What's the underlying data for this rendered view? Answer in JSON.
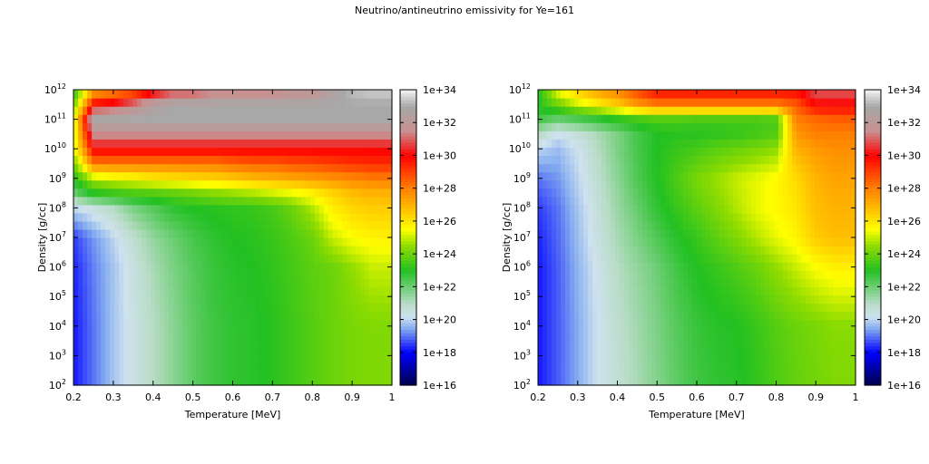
{
  "title": "Neutrino/antineutrino emissivity for Ye=161",
  "colormap": [
    {
      "value": 16,
      "color": "#000048"
    },
    {
      "value": 18,
      "color": "#0000ff"
    },
    {
      "value": 19.5,
      "color": "#86aef0"
    },
    {
      "value": 20.2,
      "color": "#cfe2ee"
    },
    {
      "value": 21,
      "color": "#b8dcc6"
    },
    {
      "value": 23,
      "color": "#22c022"
    },
    {
      "value": 24.5,
      "color": "#8fdc00"
    },
    {
      "value": 25.5,
      "color": "#ffff00"
    },
    {
      "value": 28,
      "color": "#ff8000"
    },
    {
      "value": 30,
      "color": "#ff0000"
    },
    {
      "value": 31.5,
      "color": "#c89090"
    },
    {
      "value": 33,
      "color": "#a8a8a8"
    },
    {
      "value": 34,
      "color": "#f4f4f4"
    }
  ],
  "chart_data": [
    {
      "type": "heatmap",
      "name": "neutrino",
      "xlabel": "Temperature [MeV]",
      "ylabel": "Density [g/cc]",
      "xlim": [
        0.2,
        1.0
      ],
      "ylim_log10": [
        2,
        12
      ],
      "xticks": [
        "0.2",
        "0.3",
        "0.4",
        "0.5",
        "0.6",
        "0.7",
        "0.8",
        "0.9",
        "1"
      ],
      "yticks": [
        {
          "base": "10",
          "exp": "2"
        },
        {
          "base": "10",
          "exp": "3"
        },
        {
          "base": "10",
          "exp": "4"
        },
        {
          "base": "10",
          "exp": "5"
        },
        {
          "base": "10",
          "exp": "6"
        },
        {
          "base": "10",
          "exp": "7"
        },
        {
          "base": "10",
          "exp": "8"
        },
        {
          "base": "10",
          "exp": "9"
        },
        {
          "base": "10",
          "exp": "10"
        },
        {
          "base": "10",
          "exp": "11"
        },
        {
          "base": "10",
          "exp": "12"
        }
      ],
      "colorbar_ticks": [
        "1e+16",
        "1e+18",
        "1e+20",
        "1e+22",
        "1e+24",
        "1e+26",
        "1e+28",
        "1e+30",
        "1e+32",
        "1e+34"
      ],
      "zlim_log10": [
        16,
        34
      ],
      "temperature": [
        0.2,
        0.25,
        0.3,
        0.35,
        0.4,
        0.45,
        0.5,
        0.55,
        0.6,
        0.65,
        0.7,
        0.75,
        0.8,
        0.85,
        0.9,
        0.95,
        1.0
      ],
      "log10_density_rows": [
        {
          "log10_rho": 12.0,
          "log10_emissivity": [
            23,
            27,
            27.5,
            28,
            29.5,
            30.5,
            30.5,
            31,
            31,
            31,
            31,
            31.5,
            31.5,
            32.5,
            33.3,
            33.5,
            33.5
          ]
        },
        {
          "log10_rho": 11.5,
          "log10_emissivity": [
            24,
            30,
            30.5,
            31.5,
            32.5,
            33,
            33,
            33,
            33,
            33,
            33,
            33,
            33,
            33,
            33,
            33,
            33
          ]
        },
        {
          "log10_rho": 11.0,
          "log10_emissivity": [
            25,
            33,
            33,
            33,
            33,
            33,
            33,
            33,
            33,
            33,
            33,
            33,
            33,
            33,
            33,
            33,
            33
          ]
        },
        {
          "log10_rho": 10.5,
          "log10_emissivity": [
            25,
            31.5,
            31.5,
            31.5,
            31.5,
            31.5,
            31.5,
            31.5,
            31.5,
            31.5,
            31.5,
            31.5,
            31.5,
            31.5,
            31.5,
            31.5,
            31.5
          ]
        },
        {
          "log10_rho": 10.0,
          "log10_emissivity": [
            25,
            30,
            30,
            30,
            30,
            30,
            30,
            30,
            30,
            30,
            30,
            30,
            30,
            30,
            30,
            30,
            30
          ]
        },
        {
          "log10_rho": 9.5,
          "log10_emissivity": [
            24,
            28,
            28,
            28,
            28,
            28,
            28,
            28,
            28.3,
            28.5,
            28.5,
            28.7,
            28.8,
            29,
            29.2,
            29.3,
            29.3
          ]
        },
        {
          "log10_rho": 9.0,
          "log10_emissivity": [
            23,
            24.8,
            25.3,
            25.5,
            25.8,
            26,
            26.2,
            26.3,
            26.5,
            26.8,
            27,
            27.2,
            27.4,
            27.6,
            27.8,
            28,
            28
          ]
        },
        {
          "log10_rho": 8.5,
          "log10_emissivity": [
            22,
            23,
            23.3,
            23.5,
            23.6,
            23.8,
            24,
            24.3,
            24.5,
            24.7,
            25,
            25.3,
            25.7,
            26.3,
            26.8,
            27,
            27
          ]
        },
        {
          "log10_rho": 8.0,
          "log10_emissivity": [
            20,
            20.5,
            21,
            21.8,
            22.3,
            22.8,
            23,
            23.1,
            23.2,
            23.3,
            23.5,
            24,
            24.8,
            25.8,
            26.3,
            26.5,
            26.5
          ]
        },
        {
          "log10_rho": 7.0,
          "log10_emissivity": [
            18.5,
            19.3,
            20,
            20.8,
            21.5,
            22,
            22.5,
            22.8,
            23,
            23.1,
            23.3,
            23.6,
            24,
            25,
            25.5,
            25.7,
            25.8
          ]
        },
        {
          "log10_rho": 6.0,
          "log10_emissivity": [
            18.3,
            19.1,
            19.8,
            20.5,
            21.2,
            21.8,
            22.3,
            22.7,
            22.9,
            23,
            23.2,
            23.5,
            23.8,
            24,
            24.5,
            25,
            25
          ]
        },
        {
          "log10_rho": 4.0,
          "log10_emissivity": [
            18.2,
            19,
            19.8,
            20.4,
            21,
            21.6,
            22.2,
            22.6,
            22.8,
            22.9,
            23.1,
            23.4,
            23.7,
            24,
            24.2,
            24.3,
            24.3
          ]
        },
        {
          "log10_rho": 2.0,
          "log10_emissivity": [
            18.2,
            19,
            19.8,
            20.4,
            21,
            21.6,
            22.2,
            22.6,
            22.8,
            22.9,
            23.1,
            23.4,
            23.7,
            24,
            24.2,
            24.3,
            24.3
          ]
        }
      ]
    },
    {
      "type": "heatmap",
      "name": "antineutrino",
      "xlabel": "Temperature [MeV]",
      "ylabel": "Density [g/cc]",
      "xlim": [
        0.2,
        1.0
      ],
      "ylim_log10": [
        2,
        12
      ],
      "xticks": [
        "0.2",
        "0.3",
        "0.4",
        "0.5",
        "0.6",
        "0.7",
        "0.8",
        "0.9",
        "1"
      ],
      "yticks": [
        {
          "base": "10",
          "exp": "2"
        },
        {
          "base": "10",
          "exp": "3"
        },
        {
          "base": "10",
          "exp": "4"
        },
        {
          "base": "10",
          "exp": "5"
        },
        {
          "base": "10",
          "exp": "6"
        },
        {
          "base": "10",
          "exp": "7"
        },
        {
          "base": "10",
          "exp": "8"
        },
        {
          "base": "10",
          "exp": "9"
        },
        {
          "base": "10",
          "exp": "10"
        },
        {
          "base": "10",
          "exp": "11"
        },
        {
          "base": "10",
          "exp": "12"
        }
      ],
      "colorbar_ticks": [
        "1e+16",
        "1e+18",
        "1e+20",
        "1e+22",
        "1e+24",
        "1e+26",
        "1e+28",
        "1e+30",
        "1e+32",
        "1e+34"
      ],
      "zlim_log10": [
        16,
        34
      ],
      "temperature": [
        0.2,
        0.25,
        0.3,
        0.35,
        0.4,
        0.45,
        0.5,
        0.55,
        0.6,
        0.65,
        0.7,
        0.75,
        0.8,
        0.85,
        0.9,
        0.95,
        1.0
      ],
      "log10_density_rows": [
        {
          "log10_rho": 12.0,
          "log10_emissivity": [
            23,
            25.5,
            26.5,
            27.5,
            28,
            29,
            30,
            30,
            30,
            30,
            30,
            30,
            30,
            30,
            31,
            31,
            31
          ]
        },
        {
          "log10_rho": 11.5,
          "log10_emissivity": [
            23,
            24,
            25,
            25.7,
            26.5,
            27.5,
            28,
            28,
            28,
            28,
            28,
            28,
            28,
            28.5,
            30,
            30,
            30
          ]
        },
        {
          "log10_rho": 11.0,
          "log10_emissivity": [
            22.5,
            22,
            22.3,
            22.6,
            23,
            23.3,
            23.5,
            23.5,
            23.4,
            23.4,
            23.4,
            23.4,
            23.5,
            28,
            28.3,
            28.5,
            28.5
          ]
        },
        {
          "log10_rho": 10.5,
          "log10_emissivity": [
            21,
            20.2,
            20.6,
            21.2,
            21.8,
            22.5,
            23,
            23.1,
            23.1,
            23.2,
            23.3,
            23.5,
            23.7,
            27.5,
            28,
            28,
            28
          ]
        },
        {
          "log10_rho": 10.0,
          "log10_emissivity": [
            20,
            19.7,
            20.2,
            21,
            21.8,
            22.5,
            23,
            23.3,
            23.5,
            23.8,
            24,
            24.2,
            24.5,
            27,
            27.5,
            27.7,
            27.7
          ]
        },
        {
          "log10_rho": 9.0,
          "log10_emissivity": [
            19,
            19.3,
            20,
            20.8,
            21.6,
            22.4,
            23,
            23.6,
            24.2,
            24.6,
            25,
            25.3,
            25.6,
            26.2,
            27,
            27.3,
            27.3
          ]
        },
        {
          "log10_rho": 8.0,
          "log10_emissivity": [
            18.5,
            19,
            19.8,
            20.6,
            21.4,
            22.1,
            22.8,
            23.3,
            23.8,
            24.3,
            24.8,
            25.3,
            25.6,
            26,
            26.8,
            27,
            27
          ]
        },
        {
          "log10_rho": 7.0,
          "log10_emissivity": [
            18.3,
            18.9,
            19.7,
            20.5,
            21.2,
            21.8,
            22.4,
            22.9,
            23.3,
            23.8,
            24.3,
            24.8,
            25.3,
            25.7,
            26.5,
            26.8,
            26.8
          ]
        },
        {
          "log10_rho": 6.0,
          "log10_emissivity": [
            18.2,
            18.8,
            19.6,
            20.3,
            21,
            21.5,
            22,
            22.6,
            23,
            23.3,
            23.6,
            24,
            24.5,
            25,
            25.5,
            25.8,
            25.8
          ]
        },
        {
          "log10_rho": 4.0,
          "log10_emissivity": [
            18.2,
            18.8,
            19.5,
            20.2,
            20.8,
            21.3,
            21.8,
            22.3,
            22.7,
            22.9,
            23,
            23.3,
            23.7,
            24,
            24.2,
            24.4,
            24.4
          ]
        },
        {
          "log10_rho": 2.0,
          "log10_emissivity": [
            18.2,
            18.8,
            19.5,
            20.2,
            20.7,
            21.2,
            21.7,
            22.2,
            22.6,
            22.8,
            22.9,
            23.2,
            23.6,
            23.9,
            24.1,
            24.3,
            24.3
          ]
        }
      ]
    }
  ]
}
